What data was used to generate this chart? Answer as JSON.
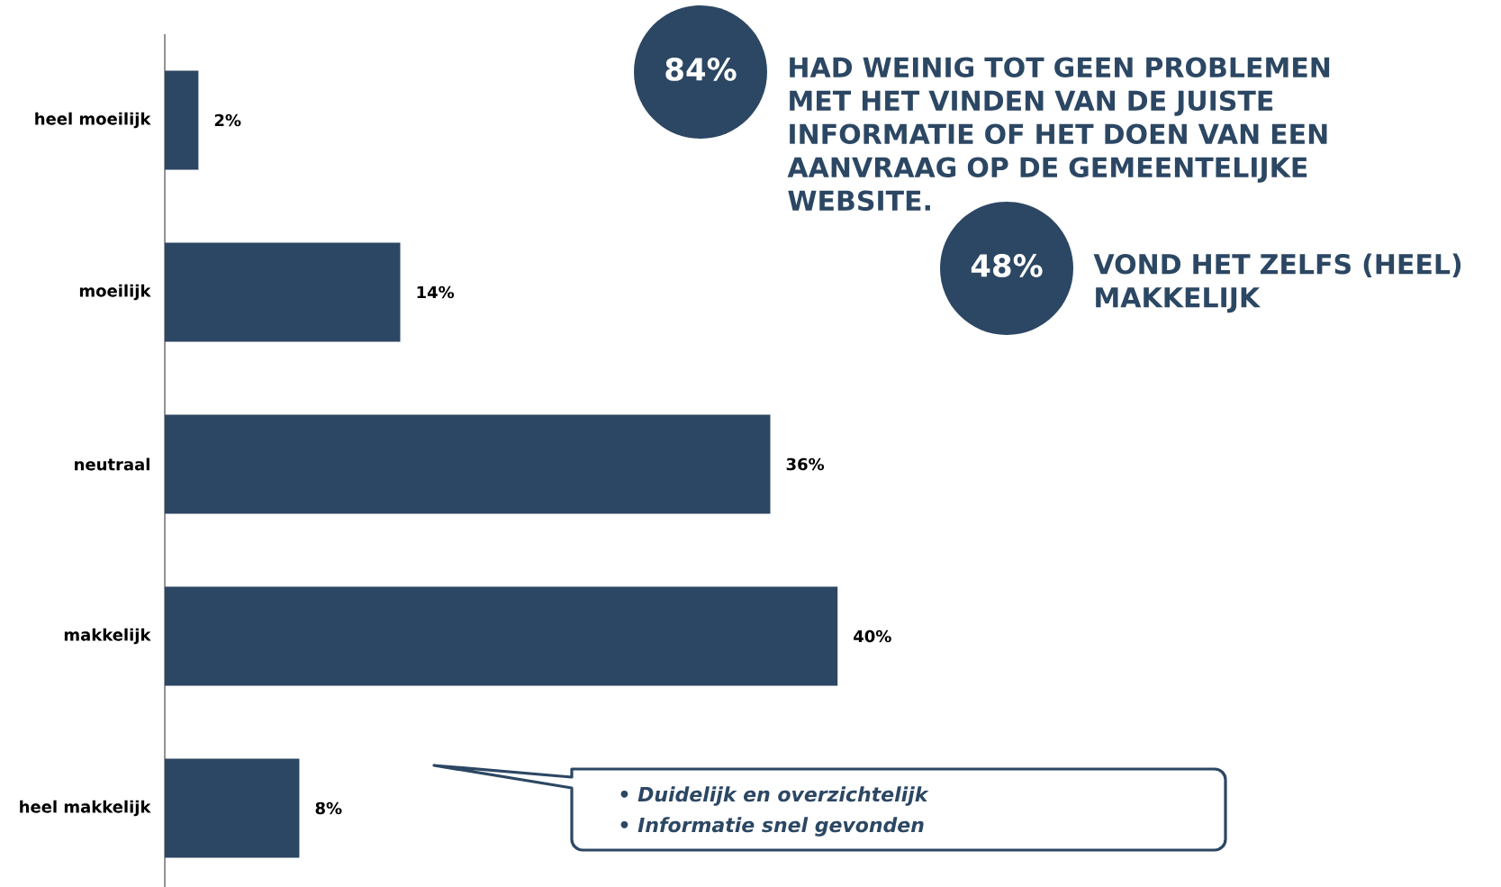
{
  "chart_data": {
    "type": "bar",
    "orientation": "horizontal",
    "color": "#2c4763",
    "categories": [
      "heel moeilijk",
      "moeilijk",
      "neutraal",
      "makkelijk",
      "heel makkelijk"
    ],
    "values": [
      2,
      14,
      36,
      40,
      8
    ],
    "value_labels": [
      "2%",
      "14%",
      "36%",
      "40%",
      "8%"
    ],
    "annotations": [
      "84%",
      "HAD WEINIG TOT GEEN PROBLEMEN MET HET VINDEN VAN DE JUISTE INFORMATIE OF HET DOEN VAN EEN AANVRAAG OP DE GEMEENTELIJKE WEBSITE.",
      "48%",
      "VOND HET ZELFS (HEEL) MAKKELIJK",
      "• Duidelijk en overzichtelijk",
      "• Informatie snel gevonden"
    ]
  }
}
